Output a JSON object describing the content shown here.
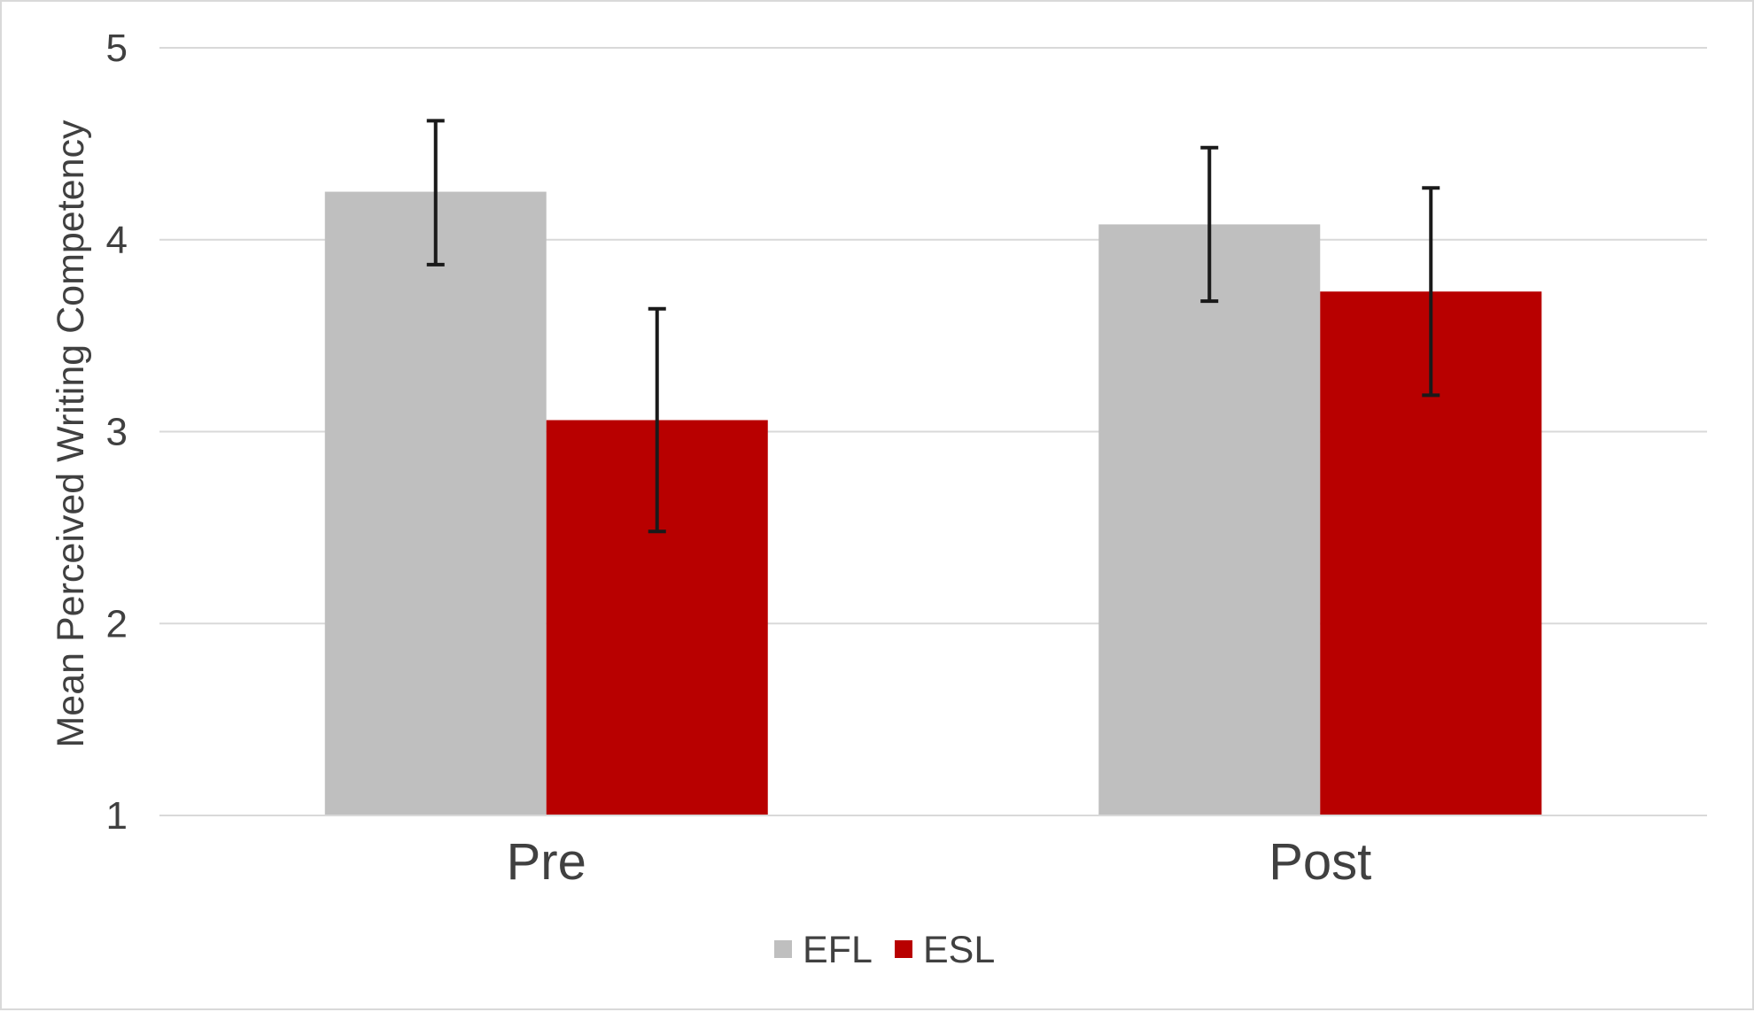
{
  "chart_data": {
    "type": "bar",
    "title": "",
    "xlabel": "",
    "ylabel": "Mean Perceived Writing Competency",
    "categories": [
      "Pre",
      "Post"
    ],
    "ylim": [
      1,
      5
    ],
    "yticks": [
      1,
      2,
      3,
      4,
      5
    ],
    "grid": true,
    "legend_position": "bottom",
    "series": [
      {
        "name": "EFL",
        "color": "#bfbfbf",
        "values": [
          4.25,
          4.08
        ],
        "error_low": [
          3.87,
          3.68
        ],
        "error_high": [
          4.62,
          4.48
        ]
      },
      {
        "name": "ESL",
        "color": "#b80000",
        "values": [
          3.06,
          3.73
        ],
        "error_low": [
          2.48,
          3.19
        ],
        "error_high": [
          3.64,
          4.27
        ]
      }
    ]
  }
}
